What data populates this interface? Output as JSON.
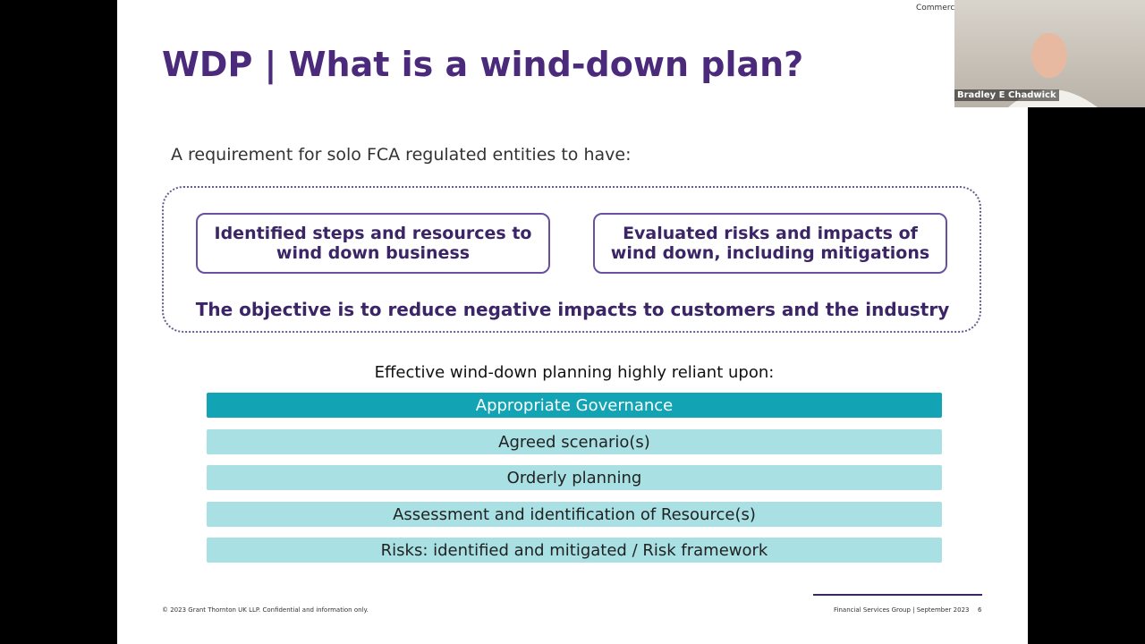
{
  "slide": {
    "title": "WDP | What is a wind-down plan?",
    "intro": "A requirement for solo FCA regulated entities to have:",
    "boxes": [
      "Identified steps and resources to wind down business",
      "Evaluated risks and impacts of wind down, including mitigations"
    ],
    "objective": "The objective is to reduce negative impacts to customers and the industry",
    "reliance_heading": "Effective wind-down planning highly reliant upon:",
    "items": [
      "Appropriate Governance",
      "Agreed scenario(s)",
      "Orderly planning",
      "Assessment and identification of Resource(s)",
      "Risks: identified and mitigated / Risk framework"
    ],
    "footer_left": "© 2023 Grant Thornton UK LLP. Confidential and information only.",
    "footer_right": "Financial Services Group | September 2023",
    "page_number": "6",
    "corner_label": "Commerc"
  },
  "video": {
    "participant": "Bradley E Chadwick"
  }
}
